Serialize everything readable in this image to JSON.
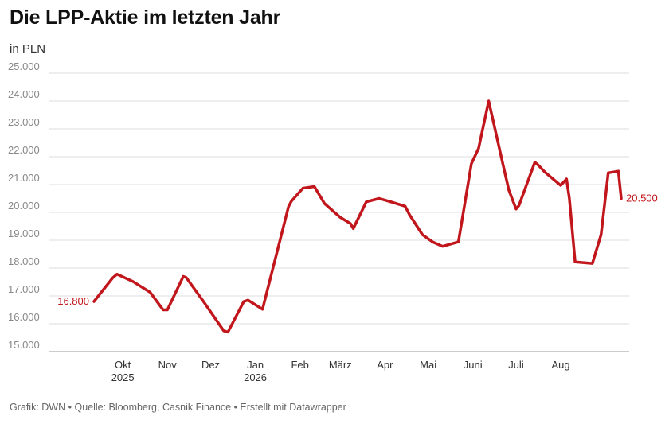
{
  "header": {
    "title": "Die LPP-Aktie im letzten Jahr",
    "subtitle": "in PLN"
  },
  "footer": {
    "credit": "Grafik: DWN",
    "sep": " • ",
    "source": "Quelle: Bloomberg, Casnik Finance",
    "tool": "Erstellt mit Datawrapper"
  },
  "colors": {
    "line": "#c0161c",
    "grid": "#dddddd"
  },
  "chart_data": {
    "type": "line",
    "title": "Die LPP-Aktie im letzten Jahr",
    "ylabel": "in PLN",
    "ylim": [
      15000,
      25000
    ],
    "yticks": [
      {
        "value": 15000,
        "label": "15.000"
      },
      {
        "value": 16000,
        "label": "16.000"
      },
      {
        "value": 17000,
        "label": "17.000"
      },
      {
        "value": 18000,
        "label": "18.000"
      },
      {
        "value": 19000,
        "label": "19.000"
      },
      {
        "value": 20000,
        "label": "20.000"
      },
      {
        "value": 21000,
        "label": "21.000"
      },
      {
        "value": 22000,
        "label": "22.000"
      },
      {
        "value": 23000,
        "label": "23.000"
      },
      {
        "value": 24000,
        "label": "24.000"
      },
      {
        "value": 25000,
        "label": "25.000"
      }
    ],
    "xlim": [
      "2025-09-11",
      "2026-09-12"
    ],
    "xticks": [
      {
        "date": "2025-10-01",
        "label": "Okt",
        "year": "2025"
      },
      {
        "date": "2025-11-01",
        "label": "Nov",
        "year": ""
      },
      {
        "date": "2025-12-01",
        "label": "Dez",
        "year": ""
      },
      {
        "date": "2026-01-01",
        "label": "Jan",
        "year": "2026"
      },
      {
        "date": "2026-02-01",
        "label": "Feb",
        "year": ""
      },
      {
        "date": "2026-03-01",
        "label": "März",
        "year": ""
      },
      {
        "date": "2026-04-01",
        "label": "Apr",
        "year": ""
      },
      {
        "date": "2026-05-01",
        "label": "Mai",
        "year": ""
      },
      {
        "date": "2026-06-01",
        "label": "Juni",
        "year": ""
      },
      {
        "date": "2026-07-01",
        "label": "Juli",
        "year": ""
      },
      {
        "date": "2026-08-01",
        "label": "Aug",
        "year": ""
      }
    ],
    "series": [
      {
        "x": [
          "2025-09-11",
          "2025-09-24",
          "2025-09-27",
          "2025-10-08",
          "2025-10-20",
          "2025-10-29",
          "2025-11-01",
          "2025-11-12",
          "2025-11-14",
          "2025-11-26",
          "2025-12-10",
          "2025-12-13",
          "2025-12-24",
          "2025-12-27",
          "2026-01-06",
          "2026-01-24",
          "2026-01-26",
          "2026-02-03",
          "2026-02-11",
          "2026-02-18",
          "2026-03-01",
          "2026-03-08",
          "2026-03-10",
          "2026-03-19",
          "2026-03-28",
          "2026-04-05",
          "2026-04-15",
          "2026-04-18",
          "2026-04-27",
          "2026-05-04",
          "2026-05-11",
          "2026-05-22",
          "2026-05-31",
          "2026-06-05",
          "2026-06-12",
          "2026-06-22",
          "2026-06-26",
          "2026-07-01",
          "2026-07-03",
          "2026-07-14",
          "2026-07-16",
          "2026-07-21",
          "2026-08-01",
          "2026-08-05",
          "2026-08-07",
          "2026-08-11",
          "2026-08-23",
          "2026-08-29",
          "2026-09-03",
          "2026-09-10",
          "2026-09-12"
        ],
        "values": [
          16800,
          17650,
          17780,
          17520,
          17130,
          16500,
          16500,
          17700,
          17660,
          16800,
          15750,
          15700,
          16800,
          16850,
          16520,
          20200,
          20400,
          20870,
          20930,
          20320,
          19820,
          19600,
          19420,
          20380,
          20500,
          20380,
          20220,
          19920,
          19200,
          18940,
          18780,
          18940,
          21750,
          22300,
          24000,
          21700,
          20800,
          20120,
          20250,
          21800,
          21720,
          21450,
          20970,
          21200,
          20500,
          18220,
          18170,
          19200,
          21420,
          21480,
          20500
        ]
      }
    ],
    "labels": {
      "start": "16.800",
      "end": "20.500"
    }
  }
}
